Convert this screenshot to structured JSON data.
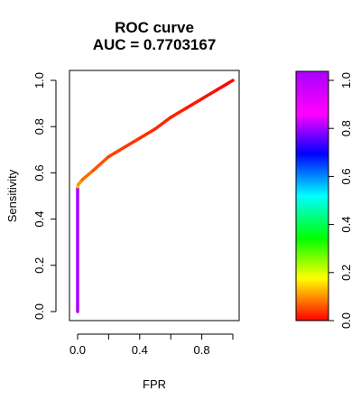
{
  "chart_data": {
    "type": "line",
    "title": "ROC curve",
    "subtitle": "AUC = 0.7703167",
    "xlabel": "FPR",
    "ylabel": "Sensitivity",
    "xlim": [
      0,
      1
    ],
    "ylim": [
      0,
      1
    ],
    "x_ticks": [
      0.0,
      0.4,
      0.8
    ],
    "x_tick_labels": [
      "0.0",
      "0.4",
      "0.8"
    ],
    "y_ticks": [
      0.0,
      0.2,
      0.4,
      0.6,
      0.8,
      1.0
    ],
    "y_tick_labels": [
      "0.0",
      "0.2",
      "0.4",
      "0.6",
      "0.8",
      "1.0"
    ],
    "grid": false,
    "series": [
      {
        "x": [
          0,
          0,
          0.005,
          0.03,
          0.1,
          0.2,
          0.3,
          0.4,
          0.5,
          0.6,
          0.7,
          0.8,
          0.9,
          1.0
        ],
        "y": [
          0,
          0.54,
          0.55,
          0.57,
          0.61,
          0.67,
          0.71,
          0.75,
          0.79,
          0.84,
          0.88,
          0.92,
          0.96,
          1.0
        ],
        "threshold": [
          1.0,
          0.2,
          0.14,
          0.1,
          0.08,
          0.06,
          0.05,
          0.04,
          0.035,
          0.03,
          0.02,
          0.015,
          0.01,
          0.0
        ]
      }
    ],
    "colorbar": {
      "range": [
        0,
        1
      ],
      "ticks": [
        0.0,
        0.2,
        0.4,
        0.6,
        0.8,
        1.0
      ],
      "tick_labels": [
        "0.0",
        "0.2",
        "0.4",
        "0.6",
        "0.8",
        "1.0"
      ],
      "colormap": "rainbow (red to violet)"
    }
  }
}
